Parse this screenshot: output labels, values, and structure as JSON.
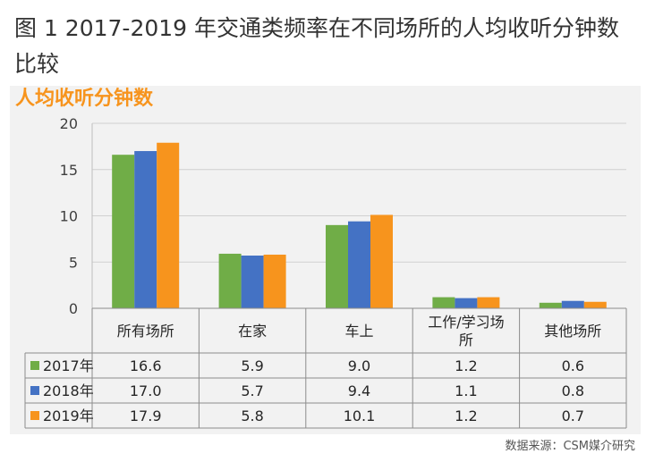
{
  "title": "图 1 2017-2019 年交通类频率在不同场所的人均收听分钟数比较",
  "source": "数据来源：CSM媒介研究",
  "chart_data": {
    "type": "bar",
    "ylabel": "人均收听分钟数",
    "ylim": [
      0,
      20
    ],
    "yticks": [
      0,
      5,
      10,
      15,
      20
    ],
    "categories": [
      "所有场所",
      "在家",
      "车上",
      "工作/学习场所",
      "其他场所"
    ],
    "category_lines": [
      [
        "所有场所"
      ],
      [
        "在家"
      ],
      [
        "车上"
      ],
      [
        "工作/学习场",
        "所"
      ],
      [
        "其他场所"
      ]
    ],
    "series": [
      {
        "name": "2017年",
        "color": "#70ad47",
        "values": [
          16.6,
          5.9,
          9.0,
          1.2,
          0.6
        ],
        "labels": [
          "16.6",
          "5.9",
          "9.0",
          "1.2",
          "0.6"
        ]
      },
      {
        "name": "2018年",
        "color": "#4472c4",
        "values": [
          17.0,
          5.7,
          9.4,
          1.1,
          0.8
        ],
        "labels": [
          "17.0",
          "5.7",
          "9.4",
          "1.1",
          "0.8"
        ]
      },
      {
        "name": "2019年",
        "color": "#f7941d",
        "values": [
          17.9,
          5.8,
          10.1,
          1.2,
          0.7
        ],
        "labels": [
          "17.9",
          "5.8",
          "10.1",
          "1.2",
          "0.7"
        ]
      }
    ],
    "grid": true,
    "legend": "data-table"
  }
}
